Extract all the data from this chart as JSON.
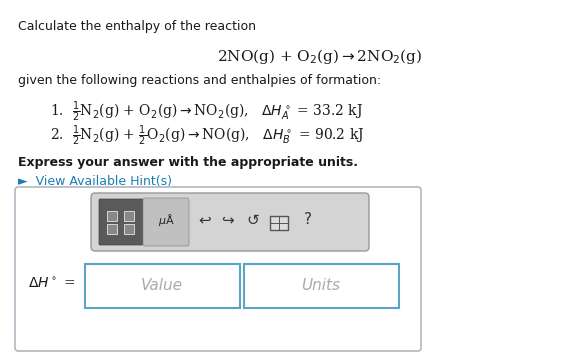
{
  "bg_color": "#ffffff",
  "white": "#ffffff",
  "light_gray_box": "#f0f0f0",
  "title_text": "Calculate the enthalpy of the reaction",
  "express_text": "Express your answer with the appropriate units.",
  "hint_text": "►  View Available Hint(s)",
  "hint_color": "#1a7db5",
  "value_placeholder": "Value",
  "units_placeholder": "Units",
  "text_color": "#1a1a1a",
  "border_color": "#b0b8c0",
  "toolbar_bg": "#d4d4d4",
  "toolbar_border": "#999999",
  "icon_dark": "#5a5a5a",
  "icon_light": "#b8b8b8",
  "input_border": "#5ba4c8"
}
